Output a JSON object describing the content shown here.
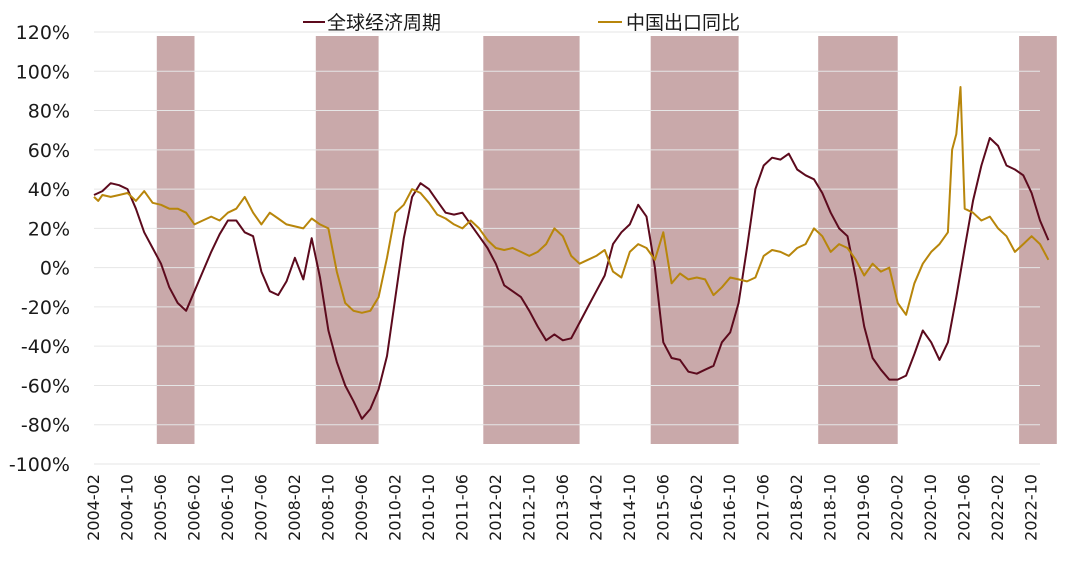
{
  "chart_data": {
    "type": "line",
    "title": "",
    "xlabel": "",
    "ylabel": "",
    "ylim": [
      -100,
      120
    ],
    "y_ticks": [
      "120%",
      "100%",
      "80%",
      "60%",
      "40%",
      "20%",
      "0%",
      "-20%",
      "-40%",
      "-60%",
      "-80%",
      "-100%"
    ],
    "y_tick_values": [
      120,
      100,
      80,
      60,
      40,
      20,
      0,
      -20,
      -40,
      -60,
      -80,
      -100
    ],
    "x_start": "2004-02",
    "x_end": "2022-12",
    "x_ticks": [
      "2004-02",
      "2004-10",
      "2005-06",
      "2006-02",
      "2006-10",
      "2007-06",
      "2008-02",
      "2008-10",
      "2009-06",
      "2010-02",
      "2010-10",
      "2011-06",
      "2012-02",
      "2012-10",
      "2013-06",
      "2014-02",
      "2014-10",
      "2015-06",
      "2016-02",
      "2016-10",
      "2017-06",
      "2018-02",
      "2018-10",
      "2019-06",
      "2020-02",
      "2020-10",
      "2021-06",
      "2022-02",
      "2022-10"
    ],
    "legend_position": "top",
    "shaded_periods": [
      {
        "start": "2005-05",
        "end": "2006-02"
      },
      {
        "start": "2008-07",
        "end": "2009-10"
      },
      {
        "start": "2011-11",
        "end": "2013-10"
      },
      {
        "start": "2015-03",
        "end": "2016-12"
      },
      {
        "start": "2018-07",
        "end": "2020-02"
      },
      {
        "start": "2022-07",
        "end": "2023-04"
      }
    ],
    "shade_color": "#c9a9aa",
    "series": [
      {
        "name": "全球经济周期",
        "color": "#5c0a1d",
        "points": [
          [
            "2004-02",
            37
          ],
          [
            "2004-04",
            39
          ],
          [
            "2004-06",
            43
          ],
          [
            "2004-08",
            42
          ],
          [
            "2004-10",
            40
          ],
          [
            "2004-12",
            30
          ],
          [
            "2005-02",
            18
          ],
          [
            "2005-04",
            10
          ],
          [
            "2005-06",
            2
          ],
          [
            "2005-08",
            -10
          ],
          [
            "2005-10",
            -18
          ],
          [
            "2005-12",
            -22
          ],
          [
            "2006-02",
            -12
          ],
          [
            "2006-04",
            -2
          ],
          [
            "2006-06",
            8
          ],
          [
            "2006-08",
            17
          ],
          [
            "2006-10",
            24
          ],
          [
            "2006-12",
            24
          ],
          [
            "2007-02",
            18
          ],
          [
            "2007-04",
            16
          ],
          [
            "2007-06",
            -2
          ],
          [
            "2007-08",
            -12
          ],
          [
            "2007-10",
            -14
          ],
          [
            "2007-12",
            -7
          ],
          [
            "2008-02",
            5
          ],
          [
            "2008-04",
            -6
          ],
          [
            "2008-06",
            15
          ],
          [
            "2008-08",
            -5
          ],
          [
            "2008-10",
            -32
          ],
          [
            "2008-12",
            -48
          ],
          [
            "2009-02",
            -60
          ],
          [
            "2009-04",
            -68
          ],
          [
            "2009-06",
            -77
          ],
          [
            "2009-08",
            -72
          ],
          [
            "2009-10",
            -62
          ],
          [
            "2009-12",
            -45
          ],
          [
            "2010-02",
            -15
          ],
          [
            "2010-04",
            15
          ],
          [
            "2010-06",
            36
          ],
          [
            "2010-08",
            43
          ],
          [
            "2010-10",
            40
          ],
          [
            "2010-12",
            34
          ],
          [
            "2011-02",
            28
          ],
          [
            "2011-04",
            27
          ],
          [
            "2011-06",
            28
          ],
          [
            "2011-08",
            22
          ],
          [
            "2011-10",
            16
          ],
          [
            "2011-12",
            10
          ],
          [
            "2012-02",
            2
          ],
          [
            "2012-04",
            -9
          ],
          [
            "2012-06",
            -12
          ],
          [
            "2012-08",
            -15
          ],
          [
            "2012-10",
            -22
          ],
          [
            "2012-12",
            -30
          ],
          [
            "2013-02",
            -37
          ],
          [
            "2013-04",
            -34
          ],
          [
            "2013-06",
            -37
          ],
          [
            "2013-08",
            -36
          ],
          [
            "2013-10",
            -28
          ],
          [
            "2013-12",
            -20
          ],
          [
            "2014-02",
            -12
          ],
          [
            "2014-04",
            -4
          ],
          [
            "2014-06",
            12
          ],
          [
            "2014-08",
            18
          ],
          [
            "2014-10",
            22
          ],
          [
            "2014-12",
            32
          ],
          [
            "2015-02",
            26
          ],
          [
            "2015-04",
            0
          ],
          [
            "2015-06",
            -38
          ],
          [
            "2015-08",
            -46
          ],
          [
            "2015-10",
            -47
          ],
          [
            "2015-12",
            -53
          ],
          [
            "2016-02",
            -54
          ],
          [
            "2016-04",
            -52
          ],
          [
            "2016-06",
            -50
          ],
          [
            "2016-08",
            -38
          ],
          [
            "2016-10",
            -33
          ],
          [
            "2016-12",
            -18
          ],
          [
            "2017-02",
            10
          ],
          [
            "2017-04",
            40
          ],
          [
            "2017-06",
            52
          ],
          [
            "2017-08",
            56
          ],
          [
            "2017-10",
            55
          ],
          [
            "2017-12",
            58
          ],
          [
            "2018-02",
            50
          ],
          [
            "2018-04",
            47
          ],
          [
            "2018-06",
            45
          ],
          [
            "2018-08",
            38
          ],
          [
            "2018-10",
            28
          ],
          [
            "2018-12",
            20
          ],
          [
            "2019-02",
            16
          ],
          [
            "2019-04",
            -5
          ],
          [
            "2019-06",
            -30
          ],
          [
            "2019-08",
            -46
          ],
          [
            "2019-10",
            -52
          ],
          [
            "2019-12",
            -57
          ],
          [
            "2020-02",
            -57
          ],
          [
            "2020-04",
            -55
          ],
          [
            "2020-06",
            -44
          ],
          [
            "2020-08",
            -32
          ],
          [
            "2020-10",
            -38
          ],
          [
            "2020-12",
            -47
          ],
          [
            "2021-02",
            -38
          ],
          [
            "2021-04",
            -15
          ],
          [
            "2021-06",
            10
          ],
          [
            "2021-08",
            34
          ],
          [
            "2021-10",
            52
          ],
          [
            "2021-12",
            66
          ],
          [
            "2022-02",
            62
          ],
          [
            "2022-04",
            52
          ],
          [
            "2022-06",
            50
          ],
          [
            "2022-08",
            47
          ],
          [
            "2022-10",
            38
          ],
          [
            "2022-12",
            24
          ],
          [
            "2023-02",
            14
          ]
        ]
      },
      {
        "name": "中国出口同比",
        "color": "#b8860b",
        "points": [
          [
            "2004-02",
            36
          ],
          [
            "2004-03",
            34
          ],
          [
            "2004-04",
            37
          ],
          [
            "2004-06",
            36
          ],
          [
            "2004-08",
            37
          ],
          [
            "2004-10",
            38
          ],
          [
            "2004-12",
            34
          ],
          [
            "2005-02",
            39
          ],
          [
            "2005-04",
            33
          ],
          [
            "2005-06",
            32
          ],
          [
            "2005-08",
            30
          ],
          [
            "2005-10",
            30
          ],
          [
            "2005-12",
            28
          ],
          [
            "2006-02",
            22
          ],
          [
            "2006-04",
            24
          ],
          [
            "2006-06",
            26
          ],
          [
            "2006-08",
            24
          ],
          [
            "2006-10",
            28
          ],
          [
            "2006-12",
            30
          ],
          [
            "2007-02",
            36
          ],
          [
            "2007-04",
            28
          ],
          [
            "2007-06",
            22
          ],
          [
            "2007-08",
            28
          ],
          [
            "2007-10",
            25
          ],
          [
            "2007-12",
            22
          ],
          [
            "2008-02",
            21
          ],
          [
            "2008-04",
            20
          ],
          [
            "2008-06",
            25
          ],
          [
            "2008-08",
            22
          ],
          [
            "2008-10",
            20
          ],
          [
            "2008-12",
            -2
          ],
          [
            "2009-02",
            -18
          ],
          [
            "2009-04",
            -22
          ],
          [
            "2009-06",
            -23
          ],
          [
            "2009-08",
            -22
          ],
          [
            "2009-10",
            -15
          ],
          [
            "2009-12",
            5
          ],
          [
            "2010-02",
            28
          ],
          [
            "2010-04",
            32
          ],
          [
            "2010-06",
            40
          ],
          [
            "2010-08",
            38
          ],
          [
            "2010-10",
            33
          ],
          [
            "2010-12",
            27
          ],
          [
            "2011-02",
            25
          ],
          [
            "2011-04",
            22
          ],
          [
            "2011-06",
            20
          ],
          [
            "2011-08",
            24
          ],
          [
            "2011-10",
            20
          ],
          [
            "2011-12",
            14
          ],
          [
            "2012-02",
            10
          ],
          [
            "2012-04",
            9
          ],
          [
            "2012-06",
            10
          ],
          [
            "2012-08",
            8
          ],
          [
            "2012-10",
            6
          ],
          [
            "2012-12",
            8
          ],
          [
            "2013-02",
            12
          ],
          [
            "2013-04",
            20
          ],
          [
            "2013-06",
            16
          ],
          [
            "2013-08",
            6
          ],
          [
            "2013-10",
            2
          ],
          [
            "2013-12",
            4
          ],
          [
            "2014-02",
            6
          ],
          [
            "2014-04",
            9
          ],
          [
            "2014-06",
            -2
          ],
          [
            "2014-08",
            -5
          ],
          [
            "2014-10",
            8
          ],
          [
            "2014-12",
            12
          ],
          [
            "2015-02",
            10
          ],
          [
            "2015-04",
            4
          ],
          [
            "2015-06",
            18
          ],
          [
            "2015-08",
            -8
          ],
          [
            "2015-10",
            -3
          ],
          [
            "2015-12",
            -6
          ],
          [
            "2016-02",
            -5
          ],
          [
            "2016-04",
            -6
          ],
          [
            "2016-06",
            -14
          ],
          [
            "2016-08",
            -10
          ],
          [
            "2016-10",
            -5
          ],
          [
            "2016-12",
            -6
          ],
          [
            "2017-02",
            -7
          ],
          [
            "2017-04",
            -5
          ],
          [
            "2017-06",
            6
          ],
          [
            "2017-08",
            9
          ],
          [
            "2017-10",
            8
          ],
          [
            "2017-12",
            6
          ],
          [
            "2018-02",
            10
          ],
          [
            "2018-04",
            12
          ],
          [
            "2018-06",
            20
          ],
          [
            "2018-08",
            16
          ],
          [
            "2018-10",
            8
          ],
          [
            "2018-12",
            12
          ],
          [
            "2019-02",
            10
          ],
          [
            "2019-04",
            4
          ],
          [
            "2019-06",
            -4
          ],
          [
            "2019-08",
            2
          ],
          [
            "2019-10",
            -2
          ],
          [
            "2019-12",
            0
          ],
          [
            "2020-02",
            -18
          ],
          [
            "2020-04",
            -24
          ],
          [
            "2020-06",
            -8
          ],
          [
            "2020-08",
            2
          ],
          [
            "2020-10",
            8
          ],
          [
            "2020-12",
            12
          ],
          [
            "2021-02",
            18
          ],
          [
            "2021-03",
            60
          ],
          [
            "2021-04",
            68
          ],
          [
            "2021-05",
            92
          ],
          [
            "2021-06",
            30
          ],
          [
            "2021-08",
            28
          ],
          [
            "2021-10",
            24
          ],
          [
            "2021-12",
            26
          ],
          [
            "2022-02",
            20
          ],
          [
            "2022-04",
            16
          ],
          [
            "2022-06",
            8
          ],
          [
            "2022-08",
            12
          ],
          [
            "2022-10",
            16
          ],
          [
            "2022-12",
            12
          ],
          [
            "2023-02",
            4
          ]
        ]
      }
    ]
  }
}
